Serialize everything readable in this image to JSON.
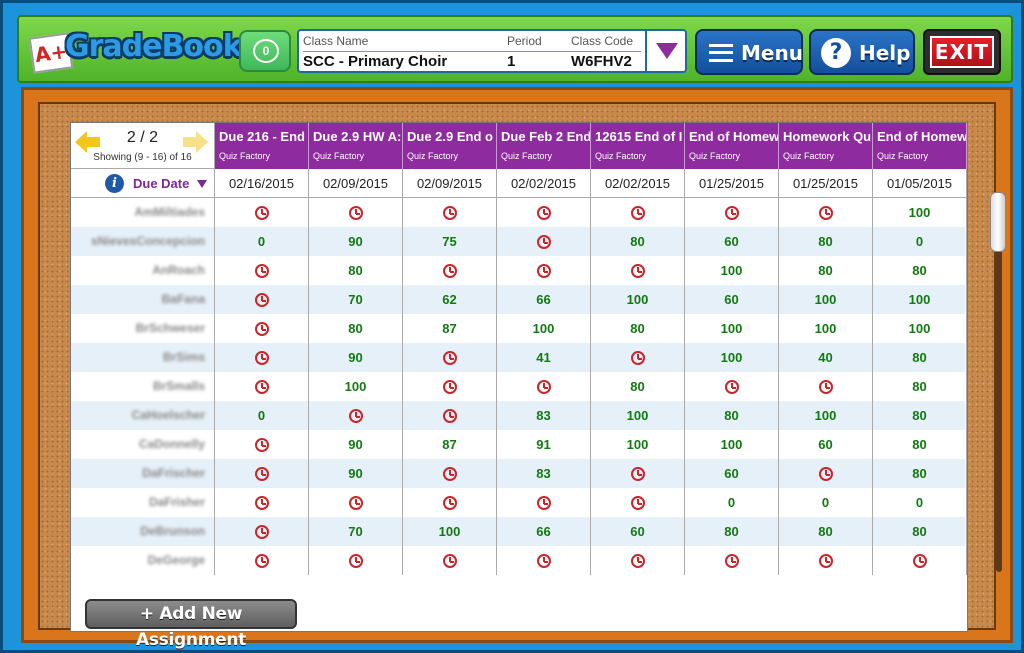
{
  "app": {
    "logo_badge": "A+",
    "logo_text": "GradeBook",
    "messages_count": "0"
  },
  "class_info": {
    "name_label": "Class Name",
    "name_value": "SCC - Primary Choir",
    "period_label": "Period",
    "period_value": "1",
    "code_label": "Class Code",
    "code_value": "W6FHV2"
  },
  "buttons": {
    "menu": "Menu",
    "help": "Help",
    "exit": "EXIT",
    "help_icon": "?",
    "add_assignment": "+ Add New Assignment"
  },
  "pager": {
    "page": "2 / 2",
    "showing": "Showing (9 - 16) of 16"
  },
  "sort": {
    "info_icon": "i",
    "label": "Due Date"
  },
  "columns": [
    {
      "title": "Due 216 - End",
      "source": "Quiz Factory",
      "date": "02/16/2015"
    },
    {
      "title": "Due 2.9 HW A:",
      "source": "Quiz Factory",
      "date": "02/09/2015"
    },
    {
      "title": "Due 2.9 End o",
      "source": "Quiz Factory",
      "date": "02/09/2015"
    },
    {
      "title": "Due Feb 2 End",
      "source": "Quiz Factory",
      "date": "02/02/2015"
    },
    {
      "title": "12615 End of I",
      "source": "Quiz Factory",
      "date": "02/02/2015"
    },
    {
      "title": "End of Homew",
      "source": "Quiz Factory",
      "date": "01/25/2015"
    },
    {
      "title": "Homework Qu",
      "source": "Quiz Factory",
      "date": "01/25/2015"
    },
    {
      "title": "End of Homew",
      "source": "Quiz Factory",
      "date": "01/05/2015"
    }
  ],
  "students": [
    {
      "name": "AmMiltiades",
      "scores": [
        "clock",
        "clock",
        "clock",
        "clock",
        "clock",
        "clock",
        "clock",
        "100"
      ]
    },
    {
      "name": "sNievesConcepcion",
      "scores": [
        "0",
        "90",
        "75",
        "clock",
        "80",
        "60",
        "80",
        "0"
      ]
    },
    {
      "name": "AnRoach",
      "scores": [
        "clock",
        "80",
        "clock",
        "clock",
        "clock",
        "100",
        "80",
        "80"
      ]
    },
    {
      "name": "BaFana",
      "scores": [
        "clock",
        "70",
        "62",
        "66",
        "100",
        "60",
        "100",
        "100"
      ]
    },
    {
      "name": "BrSchweser",
      "scores": [
        "clock",
        "80",
        "87",
        "100",
        "80",
        "100",
        "100",
        "100"
      ]
    },
    {
      "name": "BrSims",
      "scores": [
        "clock",
        "90",
        "clock",
        "41",
        "clock",
        "100",
        "40",
        "80"
      ]
    },
    {
      "name": "BrSmalls",
      "scores": [
        "clock",
        "100",
        "clock",
        "clock",
        "80",
        "clock",
        "clock",
        "80"
      ]
    },
    {
      "name": "CaHoelscher",
      "scores": [
        "0",
        "clock",
        "clock",
        "83",
        "100",
        "80",
        "100",
        "80"
      ]
    },
    {
      "name": "CaDonnelly",
      "scores": [
        "clock",
        "90",
        "87",
        "91",
        "100",
        "100",
        "60",
        "80"
      ]
    },
    {
      "name": "DaFrischer",
      "scores": [
        "clock",
        "90",
        "clock",
        "83",
        "clock",
        "60",
        "clock",
        "80"
      ]
    },
    {
      "name": "DaFrisher",
      "scores": [
        "clock",
        "clock",
        "clock",
        "clock",
        "clock",
        "0",
        "0",
        "0"
      ]
    },
    {
      "name": "DeBrunson",
      "scores": [
        "clock",
        "70",
        "100",
        "66",
        "60",
        "80",
        "80",
        "80"
      ]
    },
    {
      "name": "DeGeorge",
      "scores": [
        "clock",
        "clock",
        "clock",
        "clock",
        "clock",
        "clock",
        "clock",
        "clock"
      ]
    }
  ],
  "colors": {
    "header_purple": "#8e2b9e",
    "score_green": "#117a11",
    "late_red": "#c8262b"
  }
}
